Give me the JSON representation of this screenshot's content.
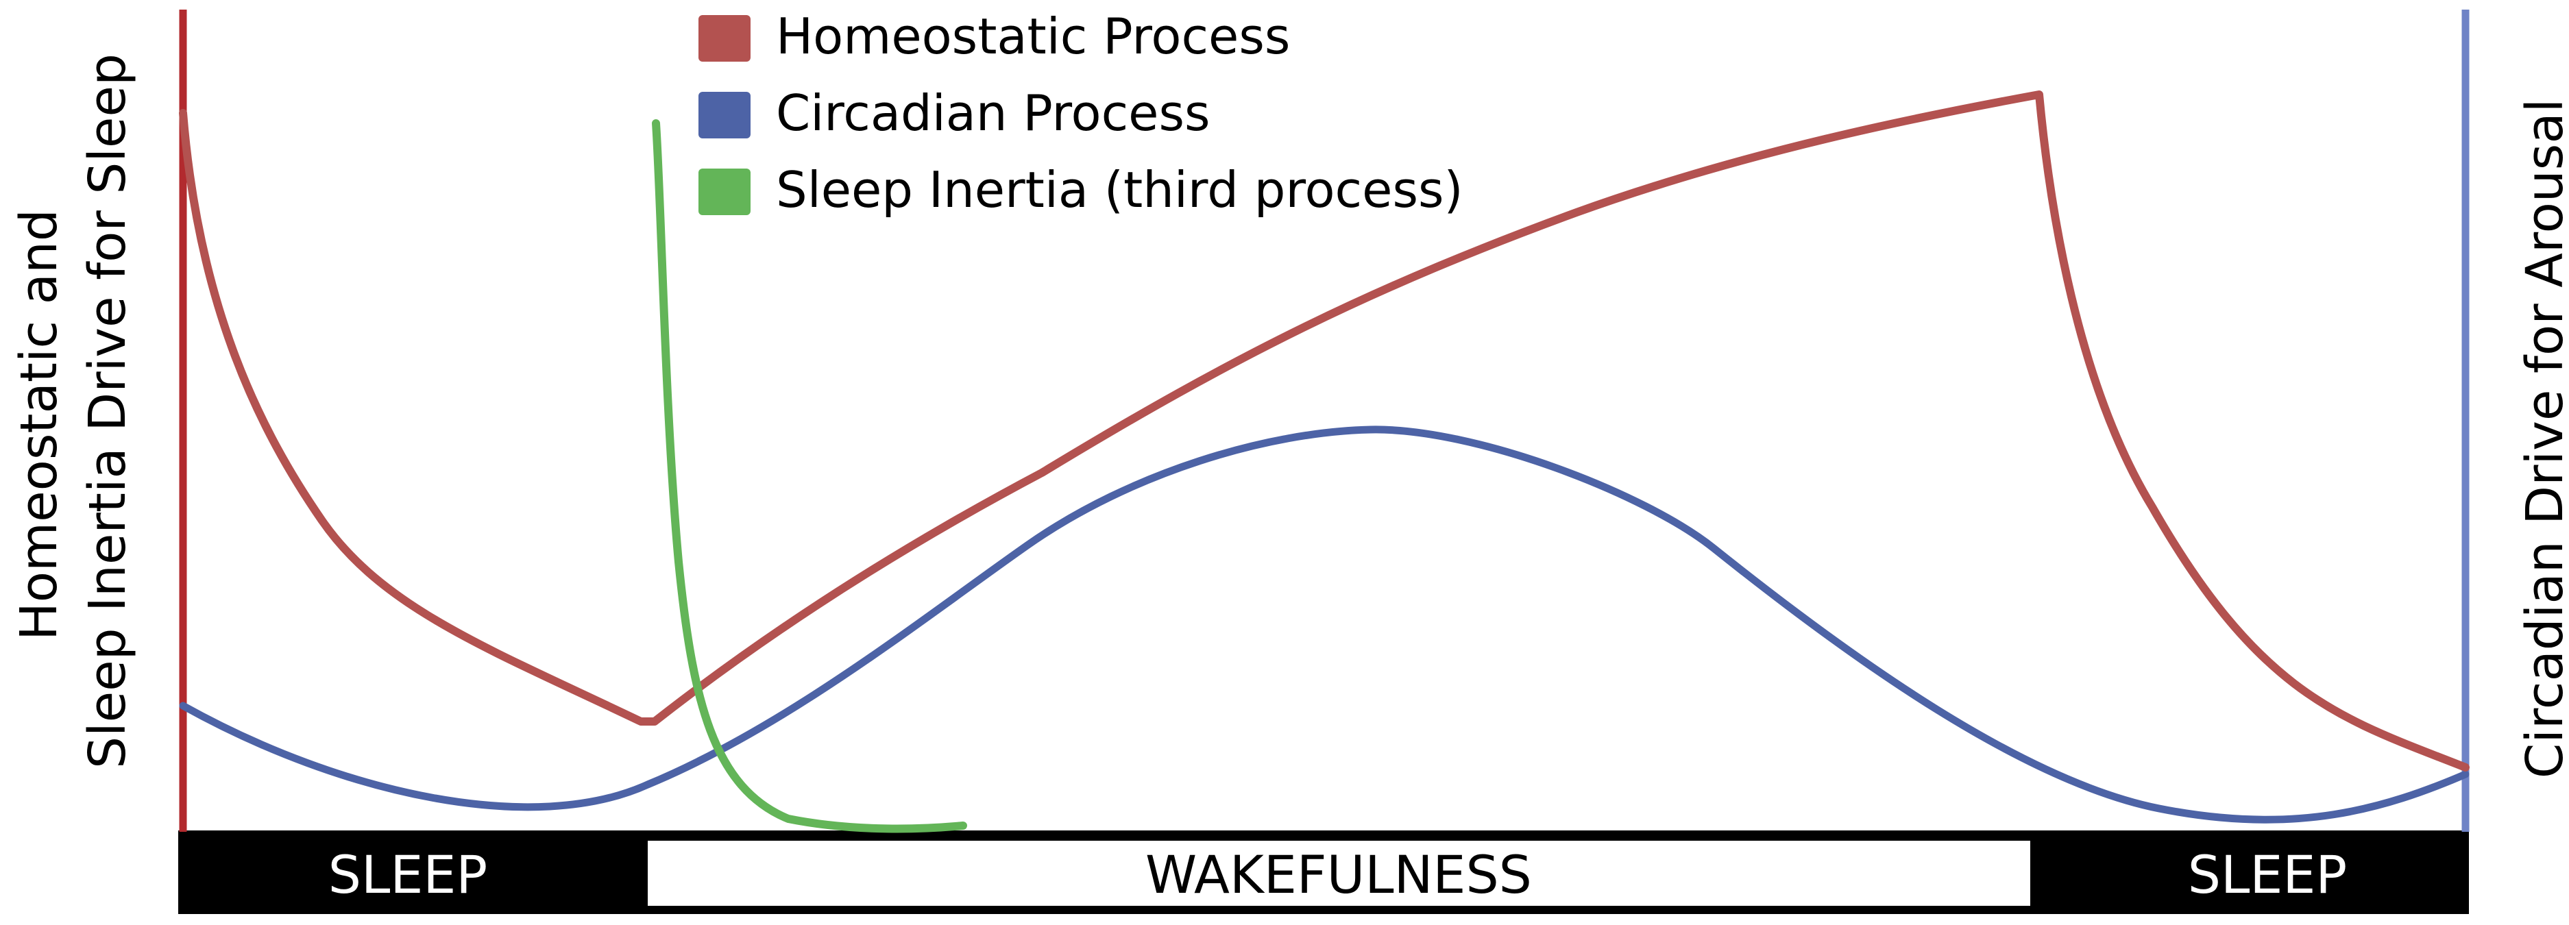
{
  "figure": {
    "left_axis_label_line1": "Homeostatic and",
    "left_axis_label_line2": "Sleep Inertia Drive for Sleep",
    "right_axis_label": "Circadian Drive for Arousal",
    "left_axis_color": "#B22A2E",
    "right_axis_color": "#6F83C6"
  },
  "legend": {
    "items": [
      {
        "label": "Homeostatic Process",
        "color": "#B35250"
      },
      {
        "label": "Circadian Process",
        "color": "#4D63A6"
      },
      {
        "label": "Sleep Inertia (third process)",
        "color": "#63B558"
      }
    ]
  },
  "timeline": {
    "segments": [
      {
        "label": "SLEEP",
        "style": "dark"
      },
      {
        "label": "WAKEFULNESS",
        "style": "light"
      },
      {
        "label": "SLEEP",
        "style": "dark"
      }
    ]
  },
  "curves": {
    "homeostatic": {
      "name": "Homeostatic Process",
      "color": "#B35250"
    },
    "circadian": {
      "name": "Circadian Process",
      "color": "#4D63A6"
    },
    "sleep_inertia": {
      "name": "Sleep Inertia (third process)",
      "color": "#63B558"
    }
  }
}
